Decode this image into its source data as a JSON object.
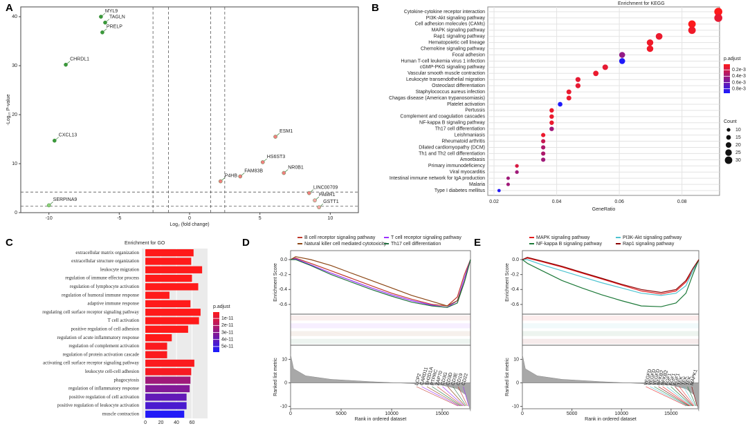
{
  "chart_data": [
    {
      "type": "scatter",
      "panel": "A",
      "xlabel": "Log₂ (fold change)",
      "ylabel": "-Log₁₀ P-value",
      "xlim": [
        -12,
        12
      ],
      "ylim": [
        0,
        42
      ],
      "xticks": [
        -10,
        -5,
        0,
        5,
        10
      ],
      "yticks": [
        0,
        10,
        20,
        30,
        40
      ],
      "vlines": [
        -2.6,
        -1.5,
        1.5,
        2.5
      ],
      "hlines": [
        1.3,
        4.2
      ],
      "label_color": "#1f6b1f",
      "points": [
        {
          "label": "MYL9",
          "x": -6.3,
          "y": 40.0,
          "color": "#3a9a3a"
        },
        {
          "label": "TAGLN",
          "x": -6.0,
          "y": 38.8,
          "color": "#3a9a3a"
        },
        {
          "label": "PRELP",
          "x": -6.2,
          "y": 36.8,
          "color": "#3a9a3a"
        },
        {
          "label": "CHRDL1",
          "x": -8.8,
          "y": 30.2,
          "color": "#3a9a3a"
        },
        {
          "label": "CXCL13",
          "x": -9.6,
          "y": 14.7,
          "color": "#3a9a3a"
        },
        {
          "label": "SERPINA9",
          "x": -10.0,
          "y": 1.5,
          "color": "#8fd07a"
        },
        {
          "label": "HS6ST3",
          "x": 5.2,
          "y": 10.3,
          "color": "#f08080"
        },
        {
          "label": "ESM1",
          "x": 6.1,
          "y": 15.5,
          "color": "#f08080"
        },
        {
          "label": "P4HB",
          "x": 2.2,
          "y": 6.4,
          "color": "#f08080"
        },
        {
          "label": "FAM83B",
          "x": 3.6,
          "y": 7.4,
          "color": "#f08080"
        },
        {
          "label": "NR0B1",
          "x": 6.7,
          "y": 8.1,
          "color": "#f08080"
        },
        {
          "label": "LINC00709",
          "x": 8.5,
          "y": 4.0,
          "color": "#f08080"
        },
        {
          "label": "PAMR1",
          "x": 8.9,
          "y": 2.5,
          "color": "#f4a6a6"
        },
        {
          "label": "GSTT1",
          "x": 9.2,
          "y": 1.1,
          "color": "#f4a6a6"
        }
      ]
    },
    {
      "type": "dot",
      "panel": "B",
      "title": "Enrichment for KEGG",
      "xlabel": "GeneRatio",
      "categories": [
        "Cytokine-cytokine receptor interaction",
        "PI3K-Akt signaling pathway",
        "Cell adhesion molecules (CAMs)",
        "MAPK signaling pathway",
        "Rap1 signaling pathway",
        "Hematopoietic cell lineage",
        "Chemokine signaling pathway",
        "Focal adhesion",
        "Human T-cell leukemia virus 1 infection",
        "cGMP-PKG signaling pathway",
        "Vascular smooth muscle contraction",
        "Leukocyte transendothelial migration",
        "Osteoclast differentiation",
        "Staphylococcus aureus infection",
        "Chagas disease (American trypanosomiasis)",
        "Platelet activation",
        "Pertussis",
        "Complement and coagulation cascades",
        "NF-kappa B signaling pathway",
        "Th17 cell differentiation",
        "Leishmaniasis",
        "Rheumatoid arthritis",
        "Dilated cardiomyopathy (DCM)",
        "Th1 and Th2 cell differentiation",
        "Amoebiasis",
        "Primary immunodeficiency",
        "Viral myocarditis",
        "Intestinal immune network for IgA production",
        "Malaria",
        "Type I diabetes mellitus"
      ],
      "ratio": [
        0.0916,
        0.0916,
        0.0832,
        0.0832,
        0.0727,
        0.0698,
        0.0698,
        0.0609,
        0.0609,
        0.0555,
        0.0525,
        0.0468,
        0.0468,
        0.0439,
        0.0439,
        0.0411,
        0.0384,
        0.0384,
        0.0384,
        0.0384,
        0.0357,
        0.0357,
        0.0357,
        0.0357,
        0.0357,
        0.0273,
        0.0273,
        0.0245,
        0.0245,
        0.0216
      ],
      "count": [
        33,
        33,
        30,
        30,
        26,
        25,
        25,
        22,
        22,
        20,
        19,
        17,
        17,
        16,
        16,
        15,
        14,
        14,
        14,
        14,
        13,
        13,
        13,
        13,
        13,
        10,
        10,
        9,
        9,
        8
      ],
      "padjust": [
        2e-05,
        0.00012,
        3e-05,
        8e-05,
        0.0001,
        8e-05,
        8e-05,
        0.00045,
        0.00092,
        0.00012,
        0.0001,
        0.00012,
        0.00012,
        0.0001,
        0.0001,
        0.00092,
        0.0001,
        0.0001,
        0.0001,
        0.0004,
        0.0001,
        0.00025,
        0.00035,
        0.00035,
        0.0004,
        0.00018,
        0.0004,
        0.0004,
        0.0004,
        0.0009
      ],
      "xlim": [
        0.018,
        0.092
      ],
      "xticks": [
        0.02,
        0.04,
        0.06,
        0.08
      ],
      "color_title": "p.adjust",
      "clim": [
        2e-05,
        0.00094
      ],
      "low_color": "#ff1a1a",
      "high_color": "#1a1aff",
      "cticks": [
        {
          "value": 0.0002,
          "label": "0.2e-3"
        },
        {
          "value": 0.0004,
          "label": "0.4e-3"
        },
        {
          "value": 0.0006,
          "label": "0.6e-3"
        },
        {
          "value": 0.0008,
          "label": "0.8e-3"
        }
      ],
      "size_title": "Count",
      "sizelim": [
        8,
        33
      ],
      "size_ticks": [
        10,
        15,
        20,
        25,
        30
      ]
    },
    {
      "type": "barh",
      "panel": "C",
      "title": "Enrichment for GO",
      "categories": [
        "extracellular matrix organization",
        "extracellular structure organization",
        "leukocyte migration",
        "regulation of immune effector process",
        "regulation of lymphocyte activation",
        "regulation of humoral immune response",
        "adaptive immune response",
        "regulating cell surface receptor signaling pathway",
        "T cell activation",
        "positive regulation of cell adhesion",
        "regulation of acute inflammatory response",
        "regulation of complement activation",
        "regulation of protein activation cascade",
        "activating cell surface receptor signaling pathway",
        "leukocyte cell-cell adhesion",
        "phagocytosis",
        "regulation of inflammatory response",
        "positive regulation of cell activation",
        "positive regulation of leukocyte activation",
        "muscle contraction"
      ],
      "values": [
        62,
        59,
        73,
        60,
        68,
        31,
        58,
        71,
        69,
        55,
        34,
        28,
        28,
        63,
        59,
        58,
        57,
        53,
        53,
        50
      ],
      "padjust": [
        1e-12,
        1e-12,
        1e-12,
        1e-12,
        1e-12,
        1e-12,
        1e-12,
        1e-12,
        1e-12,
        1e-12,
        1e-12,
        2e-12,
        2e-12,
        2e-12,
        3e-12,
        2.5e-11,
        3.2e-11,
        4e-11,
        4.6e-11,
        5.6e-11
      ],
      "xlim": [
        -4.5,
        80
      ],
      "xticks": [
        0,
        20,
        40,
        60
      ],
      "color_title": "p.adjust",
      "clim": [
        1e-12,
        5.8e-11
      ],
      "low_color": "#ff1a1a",
      "high_color": "#1a1aff",
      "cticks": [
        {
          "value": 1e-11,
          "label": "1e-11"
        },
        {
          "value": 2e-11,
          "label": "2e-11"
        },
        {
          "value": 3e-11,
          "label": "3e-11"
        },
        {
          "value": 4e-11,
          "label": "4e-11"
        },
        {
          "value": 5e-11,
          "label": "5e-11"
        }
      ]
    },
    {
      "type": "gsea",
      "panel": "D",
      "ylabel": "Enrichment Score",
      "metric_label": "Ranked list metric",
      "xlabel": "Rank in ordered dataset",
      "xlim": [
        0,
        17800
      ],
      "xticks": [
        0,
        5000,
        10000,
        15000
      ],
      "ylim": [
        -0.73,
        0.12
      ],
      "yticks": [
        {
          "value": 0,
          "label": "0.0"
        },
        {
          "value": -0.2,
          "label": "-0.2"
        },
        {
          "value": -0.4,
          "label": "-0.4"
        },
        {
          "value": -0.6,
          "label": "-0.6"
        }
      ],
      "x": [
        0,
        500,
        2000,
        4000,
        6000,
        8000,
        10000,
        12000,
        14000,
        15500,
        16500,
        17200,
        17800
      ],
      "series": [
        {
          "name": "B cell receptor signaling pathway",
          "color": "#c0392b",
          "values": [
            0,
            0.02,
            -0.05,
            -0.15,
            -0.25,
            -0.35,
            -0.45,
            -0.53,
            -0.6,
            -0.62,
            -0.5,
            -0.2,
            0
          ]
        },
        {
          "name": "T cell receptor signaling pathway",
          "color": "#9b30ff",
          "values": [
            0,
            0.01,
            -0.07,
            -0.18,
            -0.28,
            -0.38,
            -0.47,
            -0.55,
            -0.61,
            -0.64,
            -0.55,
            -0.25,
            0
          ]
        },
        {
          "name": "Natural killer cell mediated cytotoxicity",
          "color": "#8b4513",
          "values": [
            0,
            0.04,
            0,
            -0.08,
            -0.18,
            -0.28,
            -0.38,
            -0.48,
            -0.56,
            -0.62,
            -0.55,
            -0.3,
            0
          ]
        },
        {
          "name": "Th17 cell differentiation",
          "color": "#1f6f3f",
          "values": [
            0,
            0,
            -0.08,
            -0.2,
            -0.3,
            -0.4,
            -0.49,
            -0.57,
            -0.62,
            -0.64,
            -0.58,
            -0.3,
            0
          ]
        }
      ],
      "metric_x": [
        0,
        300,
        1500,
        4000,
        8000,
        12000,
        15000,
        16500,
        17300,
        17800
      ],
      "metric": [
        12,
        6,
        3,
        1.5,
        0.5,
        -0.3,
        -1,
        -2.5,
        -5,
        -12
      ],
      "metric_ylim": [
        -11,
        16
      ],
      "metric_yticks": [
        10,
        0,
        -10
      ],
      "genes": [
        "LCP2",
        "CARD11",
        "SH2D1A",
        "PTPRC",
        "ZAP70",
        "CD3G",
        "CD3D",
        "CD3E",
        "CD19",
        "CD22"
      ]
    },
    {
      "type": "gsea",
      "panel": "E",
      "ylabel": "Enrichment Score",
      "metric_label": "Ranked list metric",
      "xlabel": "Rank in ordered dataset",
      "xlim": [
        0,
        17800
      ],
      "xticks": [
        0,
        5000,
        10000,
        15000
      ],
      "ylim": [
        -0.73,
        0.12
      ],
      "yticks": [
        {
          "value": 0,
          "label": "0.0"
        },
        {
          "value": -0.2,
          "label": "-0.2"
        },
        {
          "value": -0.4,
          "label": "-0.4"
        },
        {
          "value": -0.6,
          "label": "-0.6"
        }
      ],
      "x": [
        0,
        500,
        2000,
        4000,
        6000,
        8000,
        10000,
        12000,
        14000,
        15500,
        16500,
        17200,
        17800
      ],
      "series": [
        {
          "name": "MAPK signaling pathway",
          "color": "#e31a1c",
          "values": [
            0,
            0.02,
            -0.03,
            -0.1,
            -0.18,
            -0.26,
            -0.34,
            -0.42,
            -0.46,
            -0.42,
            -0.3,
            -0.15,
            0
          ]
        },
        {
          "name": "PI3K-Akt signaling pathway",
          "color": "#4dc3d0",
          "values": [
            0,
            0,
            -0.07,
            -0.15,
            -0.23,
            -0.31,
            -0.38,
            -0.45,
            -0.48,
            -0.45,
            -0.35,
            -0.15,
            0
          ]
        },
        {
          "name": "NF-kappa B signaling pathway",
          "color": "#1b7837",
          "values": [
            0,
            -0.05,
            -0.15,
            -0.28,
            -0.38,
            -0.47,
            -0.55,
            -0.62,
            -0.63,
            -0.58,
            -0.45,
            -0.2,
            0
          ]
        },
        {
          "name": "Rap1 signaling pathway",
          "color": "#8b0000",
          "values": [
            0,
            0.03,
            -0.02,
            -0.09,
            -0.17,
            -0.25,
            -0.33,
            -0.4,
            -0.44,
            -0.4,
            -0.28,
            -0.12,
            0
          ]
        }
      ],
      "metric_x": [
        0,
        300,
        1500,
        4000,
        8000,
        12000,
        15000,
        16500,
        17300,
        17800
      ],
      "metric": [
        12,
        6,
        3,
        1.5,
        0.5,
        -0.3,
        -1,
        -2.5,
        -5,
        -12
      ],
      "metric_ylim": [
        -11,
        16
      ],
      "metric_yticks": [
        10,
        0,
        -10
      ],
      "genes": [
        "VEGFD",
        "VEGFD",
        "VEGFD",
        "NFKB2",
        "NFKB2",
        "FGF1",
        "FGF1",
        "FGF1",
        "TEK",
        "TEK",
        "TEK",
        "MAPK1"
      ]
    }
  ]
}
